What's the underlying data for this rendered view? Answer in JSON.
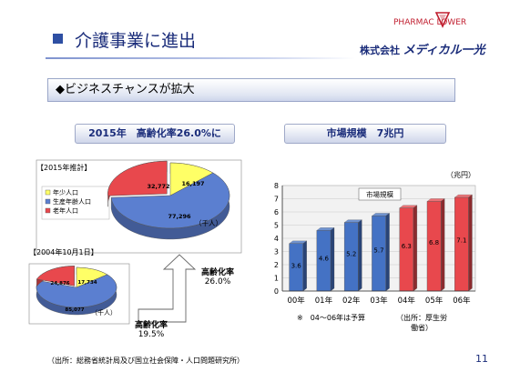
{
  "slide": {
    "title": "介護事業に進出",
    "logo_text": "PHARMAC LOWER",
    "company_prefix": "株式会社",
    "company_name": "メディカル一光",
    "banner": "◆ビジネスチャンスが拡大",
    "left_heading": "2015年　高齢化率26.0%に",
    "right_heading": "市場規模　7兆円",
    "footer_source": "（出所：総務省統計局及び国立社会保障・人口問題研究所）",
    "page_number": "11",
    "arrow_rate_label": "高齢化率",
    "arrow_rate_value": "26.0%",
    "small_rate_label": "高齢化率",
    "small_rate_value": "19.5%",
    "footnote_forecast": "※　04～06年は予算",
    "footnote_source": "（出所：厚生労働省）"
  },
  "colors": {
    "accent_navy": "#1a2c7a",
    "bar_blue": "#4472c4",
    "bar_red": "#e8484d",
    "pie_yellow": "#ffff66",
    "pie_blue": "#5b7fd0",
    "pie_red": "#e8484d"
  },
  "chart_data": [
    {
      "type": "pie",
      "caption": "【2015年推計】",
      "unit_label": "（千人）",
      "legend": [
        "年少人口",
        "生産年齢人口",
        "老年人口"
      ],
      "slices": [
        {
          "name": "年少人口",
          "value": 16197,
          "label": "16,197",
          "color": "#ffff66"
        },
        {
          "name": "生産年齢人口",
          "value": 77296,
          "label": "77,296",
          "color": "#5b7fd0"
        },
        {
          "name": "老年人口",
          "value": 32772,
          "label": "32,772",
          "color": "#e8484d"
        }
      ]
    },
    {
      "type": "pie",
      "caption": "【2004年10月1日】",
      "unit_label": "（千人）",
      "slices": [
        {
          "name": "年少人口",
          "value": 17734,
          "label": "17,734",
          "color": "#ffff66"
        },
        {
          "name": "生産年齢人口",
          "value": 85077,
          "label": "85,077",
          "color": "#5b7fd0"
        },
        {
          "name": "老年人口",
          "value": 24876,
          "label": "24,876",
          "color": "#e8484d"
        }
      ]
    },
    {
      "type": "bar",
      "unit": "（兆円）",
      "legend": "市場規模",
      "categories": [
        "00年",
        "01年",
        "02年",
        "03年",
        "04年",
        "05年",
        "06年"
      ],
      "values": [
        3.6,
        4.6,
        5.2,
        5.7,
        6.3,
        6.8,
        7.1
      ],
      "value_labels": [
        "3.6",
        "4.6",
        "5.2",
        "5.7",
        "6.3",
        "6.8",
        "7.1"
      ],
      "bar_colors": [
        "#4472c4",
        "#4472c4",
        "#4472c4",
        "#4472c4",
        "#e8484d",
        "#e8484d",
        "#e8484d"
      ],
      "ylim": [
        0,
        8
      ],
      "yticks": [
        "0",
        "1",
        "2",
        "3",
        "4",
        "5",
        "6",
        "7",
        "8"
      ]
    }
  ]
}
